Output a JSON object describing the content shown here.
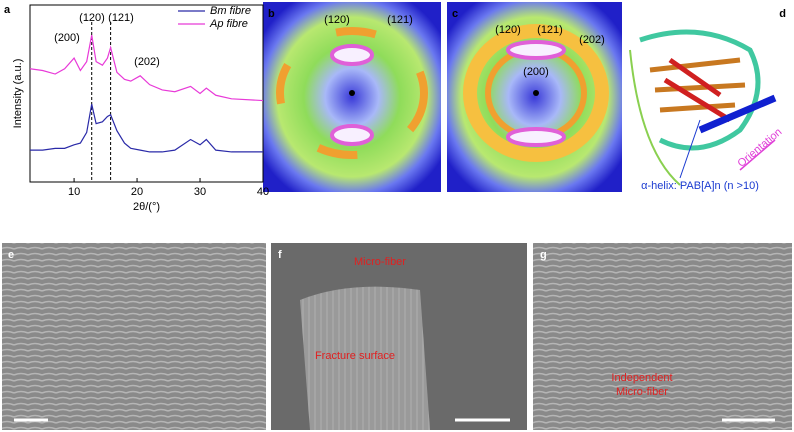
{
  "chart_data": {
    "type": "line",
    "x_label": "2θ/(°)",
    "y_label": "Intensity (a.u.)",
    "x": [
      3,
      5,
      7,
      8.5,
      10,
      11,
      12,
      12.8,
      13.5,
      14.5,
      15.3,
      15.8,
      16.8,
      18,
      19,
      20.5,
      22,
      24,
      26,
      28.5,
      30,
      31,
      32.5,
      35,
      40
    ],
    "series": [
      {
        "name": "Bm fibre",
        "color": "#2a2aa8",
        "values": [
          18,
          18,
          19,
          19,
          21,
          22,
          28,
          44,
          33,
          34,
          37,
          38,
          29,
          22,
          19,
          18,
          17,
          17,
          18,
          24,
          21,
          24,
          18,
          17,
          17
        ]
      },
      {
        "name": "Ap fibre",
        "color": "#e83ad8",
        "values": [
          64,
          63,
          61,
          64,
          70,
          63,
          68,
          83,
          68,
          66,
          70,
          76,
          62,
          58,
          57,
          60,
          55,
          52,
          51,
          54,
          50,
          53,
          49,
          47,
          46
        ]
      }
    ],
    "xlim": [
      3,
      40
    ],
    "xticks": [
      10,
      20,
      30,
      40
    ],
    "ylim": [
      0,
      100
    ],
    "reference_lines": [
      12.8,
      15.8
    ],
    "annotations": [
      "(200)",
      "(120)",
      "(121)",
      "(202)"
    ]
  },
  "panel_labels": [
    "a",
    "b",
    "c",
    "d",
    "e",
    "f",
    "g"
  ],
  "panel_b": {
    "labels": [
      "(120)",
      "(121)"
    ]
  },
  "panel_c": {
    "labels": [
      "(120)",
      "(121)",
      "(202)",
      "(200)"
    ]
  },
  "panel_d": {
    "helix_label": "α-helix: PAB[A]n (n >10)",
    "orientation": "Orientation"
  },
  "panel_f": {
    "labels": [
      "Micro-fiber",
      "Fracture surface"
    ]
  },
  "panel_g": {
    "labels": [
      "Independent",
      "Micro-fiber"
    ]
  }
}
